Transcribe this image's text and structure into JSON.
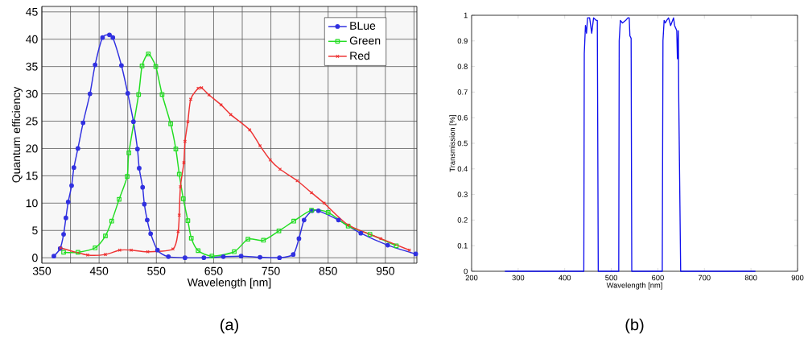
{
  "chart_data": [
    {
      "type": "line",
      "xlabel": "Wavelength [nm]",
      "ylabel": "Quantum efficiency",
      "annotations": [
        "(a)"
      ],
      "xlim": [
        350,
        1005
      ],
      "ylim": [
        -1,
        46
      ],
      "xticks": [
        350,
        {
          "value": 400,
          "label": null
        },
        450,
        {
          "value": 500,
          "label": null
        },
        550,
        {
          "value": 600,
          "label": null
        },
        650,
        {
          "value": 700,
          "label": null
        },
        750,
        {
          "value": 800,
          "label": null
        },
        850,
        {
          "value": 900,
          "label": null
        },
        950,
        {
          "value": 1000,
          "label": null
        }
      ],
      "yticks": [
        0,
        5,
        10,
        15,
        20,
        25,
        30,
        35,
        40,
        45
      ],
      "grid": true,
      "legend": "top right",
      "line_style": "solid",
      "series": [
        {
          "name": "BLue",
          "color": "#3030e0",
          "marker": "circle",
          "x": [
            371,
            382,
            388,
            392,
            396,
            402,
            406,
            413,
            422,
            434,
            443,
            456,
            468,
            474,
            489,
            500,
            510,
            517,
            520,
            526,
            529,
            534,
            540,
            552,
            571,
            600,
            633,
            667,
            698,
            731,
            765,
            789,
            799,
            808,
            822,
            833,
            868,
            907,
            954,
            1003
          ],
          "values": [
            0.3,
            1.7,
            4.3,
            7.3,
            10.2,
            13.2,
            16.5,
            20,
            24.7,
            30,
            35.3,
            40.3,
            40.8,
            40.3,
            35.2,
            30.1,
            24.9,
            19.9,
            16.4,
            12.9,
            9.8,
            6.9,
            4.4,
            1.4,
            0.2,
            0,
            0,
            0.2,
            0.3,
            0.1,
            0,
            0.6,
            3.5,
            6.9,
            8.6,
            8.6,
            6.9,
            4.5,
            2.3,
            0.7
          ]
        },
        {
          "name": "Green",
          "color": "#22dd22",
          "marker": "square",
          "x": [
            388,
            413,
            443,
            461,
            472,
            485,
            499,
            502,
            519,
            525,
            536,
            549,
            560,
            575,
            584,
            590,
            597,
            605,
            611,
            623,
            647,
            686,
            710,
            737,
            764,
            790,
            821,
            850,
            885,
            923,
            969
          ],
          "values": [
            1,
            1,
            1.8,
            4,
            6.7,
            10.7,
            14.9,
            19.2,
            29.9,
            35.1,
            37.3,
            35,
            29.9,
            24.5,
            19.9,
            15.3,
            10.8,
            6.8,
            3.6,
            1.3,
            0.3,
            1.1,
            3.4,
            3.2,
            4.9,
            6.7,
            8.7,
            8.3,
            5.8,
            4.3,
            2.2
          ]
        },
        {
          "name": "Red",
          "color": "#ee3333",
          "marker": "cross",
          "x": [
            383,
            430,
            461,
            486,
            506,
            535,
            579,
            588,
            590,
            592,
            598,
            600,
            605,
            610,
            623,
            629,
            642,
            663,
            680,
            713,
            731,
            749,
            766,
            796,
            821,
            843,
            885,
            942,
            992
          ],
          "values": [
            1.8,
            0.5,
            0.6,
            1.4,
            1.4,
            1.1,
            1.6,
            4.8,
            7.8,
            13,
            17.4,
            21.3,
            24.9,
            29,
            31,
            31.1,
            29.8,
            28,
            26.2,
            23.4,
            20.5,
            17.9,
            16.2,
            14.1,
            11.9,
            10,
            6,
            3.5,
            1.4
          ]
        }
      ]
    },
    {
      "type": "line",
      "xlabel": "Wavelength [nm]",
      "ylabel": "Transmission [%]",
      "annotations": [
        "(b)"
      ],
      "xlim": [
        200,
        900
      ],
      "ylim": [
        0,
        1
      ],
      "xticks": [
        200,
        300,
        400,
        500,
        600,
        700,
        800,
        900
      ],
      "yticks": [
        0,
        0.1,
        0.2,
        0.3,
        0.4,
        0.5,
        0.6,
        0.7,
        0.8,
        0.9,
        1
      ],
      "grid": false,
      "legend": false,
      "line_style": "solid",
      "series": [
        {
          "color": "#1010ee",
          "marker": "none",
          "x": [
            271.5,
            441,
            442,
            444.5,
            446.8,
            449,
            453.5,
            458,
            462,
            467.6,
            470,
            472,
            516,
            517,
            519.5,
            524,
            531,
            535.6,
            538.5,
            540,
            542.6,
            544,
            609.5,
            611,
            613.5,
            616,
            619,
            623,
            627.5,
            633.7,
            636,
            640.6,
            642,
            644,
            645,
            646.4,
            649,
            809.6
          ],
          "values": [
            0,
            0,
            0.85,
            0.96,
            0.93,
            0.99,
            0.99,
            0.93,
            0.99,
            0.98,
            0.98,
            0,
            0,
            0.9,
            0.98,
            0.97,
            0.98,
            0.99,
            0.99,
            0.92,
            0.91,
            0,
            0,
            0.9,
            0.98,
            0.97,
            0.98,
            0.99,
            0.96,
            0.99,
            0.96,
            0.94,
            0.83,
            0.94,
            0.66,
            0.43,
            0,
            0
          ]
        }
      ]
    }
  ]
}
